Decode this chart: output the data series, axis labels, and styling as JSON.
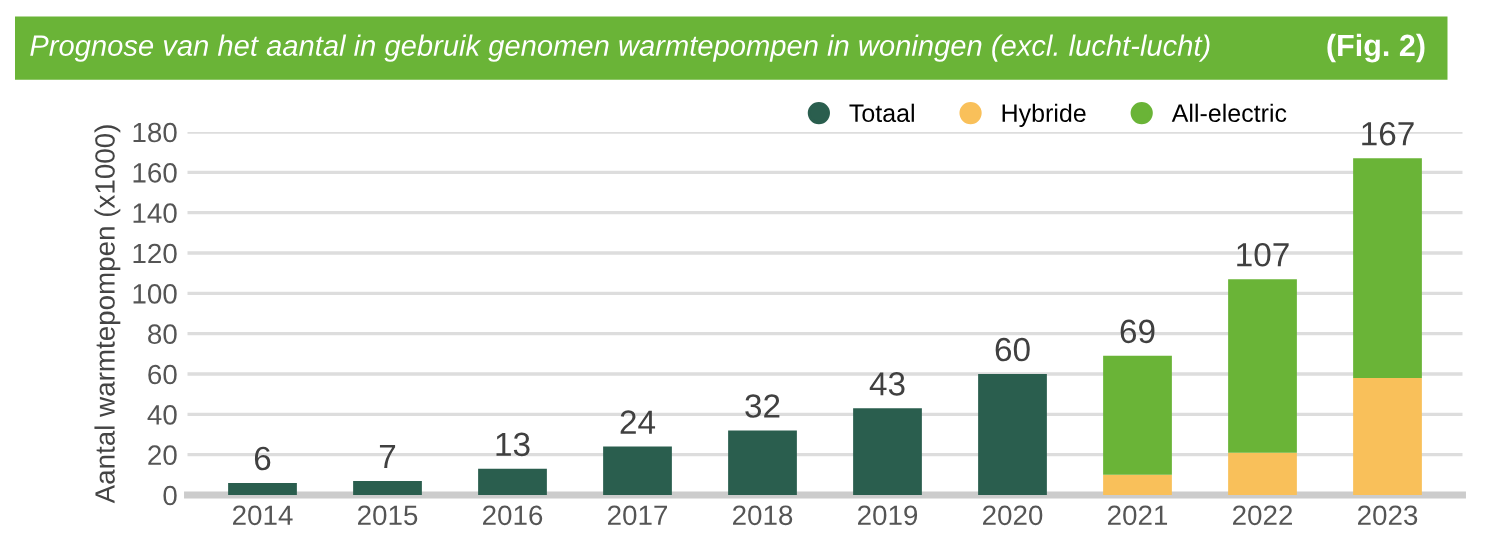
{
  "chart_data": {
    "type": "bar",
    "stacked": true,
    "title": "Prognose van het aantal in gebruik genomen warmtepompen in woningen (excl. lucht-lucht)",
    "annotations": [
      "(Fig. 2)"
    ],
    "ylabel": "Aantal warmtepompen (x1000)",
    "categories": [
      "2014",
      "2015",
      "2016",
      "2017",
      "2018",
      "2019",
      "2020",
      "2021",
      "2022",
      "2023"
    ],
    "series": [
      {
        "name": "Totaal",
        "color": "#2a5e4e",
        "values": [
          6,
          7,
          13,
          24,
          32,
          43,
          60,
          null,
          null,
          null
        ]
      },
      {
        "name": "Hybride",
        "color": "#f9c05a",
        "values": [
          null,
          null,
          null,
          null,
          null,
          null,
          null,
          10,
          21,
          58
        ]
      },
      {
        "name": "All-electric",
        "color": "#6ab437",
        "values": [
          null,
          null,
          null,
          null,
          null,
          null,
          null,
          59,
          86,
          109
        ]
      }
    ],
    "totals": [
      "6",
      "7",
      "13",
      "24",
      "32",
      "43",
      "60",
      "69",
      "107",
      "167"
    ],
    "ylim": [
      0,
      180
    ],
    "yticks": [
      0,
      20,
      40,
      60,
      80,
      100,
      120,
      140,
      160,
      180
    ],
    "grid": "y",
    "legend": "top right"
  }
}
